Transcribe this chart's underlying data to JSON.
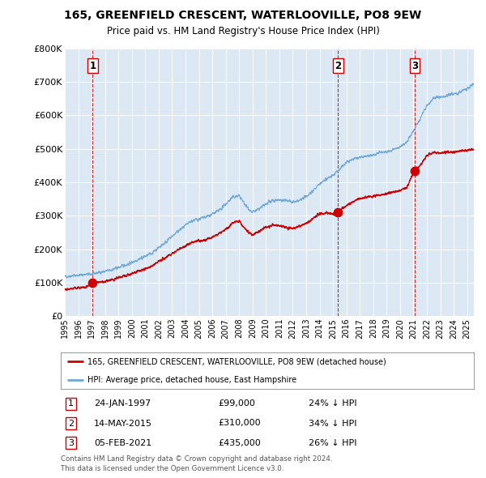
{
  "title_line1": "165, GREENFIELD CRESCENT, WATERLOOVILLE, PO8 9EW",
  "title_line2": "Price paid vs. HM Land Registry's House Price Index (HPI)",
  "background_color": "#dce9f5",
  "plot_bg_color": "#dce9f5",
  "outer_bg_color": "#ffffff",
  "red_line_color": "#cc0000",
  "blue_line_color": "#6fa8d6",
  "sale_points": [
    {
      "year": 1997.07,
      "price": 99000,
      "label": "1"
    },
    {
      "year": 2015.37,
      "price": 310000,
      "label": "2"
    },
    {
      "year": 2021.09,
      "price": 435000,
      "label": "3"
    }
  ],
  "vertical_line_years": [
    1997.07,
    2015.37,
    2021.09
  ],
  "xmin": 1995,
  "xmax": 2025.5,
  "ymin": 0,
  "ymax": 800000,
  "yticks": [
    0,
    100000,
    200000,
    300000,
    400000,
    500000,
    600000,
    700000,
    800000
  ],
  "ytick_labels": [
    "£0",
    "£100K",
    "£200K",
    "£300K",
    "£400K",
    "£500K",
    "£600K",
    "£700K",
    "£800K"
  ],
  "legend_line1": "165, GREENFIELD CRESCENT, WATERLOOVILLE, PO8 9EW (detached house)",
  "legend_line2": "HPI: Average price, detached house, East Hampshire",
  "table_rows": [
    {
      "num": "1",
      "date": "24-JAN-1997",
      "price": "£99,000",
      "hpi": "24% ↓ HPI"
    },
    {
      "num": "2",
      "date": "14-MAY-2015",
      "price": "£310,000",
      "hpi": "34% ↓ HPI"
    },
    {
      "num": "3",
      "date": "05-FEB-2021",
      "price": "£435,000",
      "hpi": "26% ↓ HPI"
    }
  ],
  "footer": "Contains HM Land Registry data © Crown copyright and database right 2024.\nThis data is licensed under the Open Government Licence v3.0.",
  "hpi_anchors": [
    [
      1995.0,
      118000
    ],
    [
      1995.5,
      120000
    ],
    [
      1996.0,
      122000
    ],
    [
      1996.5,
      124000
    ],
    [
      1997.0,
      125000
    ],
    [
      1997.5,
      130000
    ],
    [
      1998.0,
      133000
    ],
    [
      1998.5,
      138000
    ],
    [
      1999.0,
      145000
    ],
    [
      1999.5,
      152000
    ],
    [
      2000.0,
      160000
    ],
    [
      2000.5,
      170000
    ],
    [
      2001.0,
      178000
    ],
    [
      2001.5,
      188000
    ],
    [
      2002.0,
      205000
    ],
    [
      2002.5,
      220000
    ],
    [
      2003.0,
      238000
    ],
    [
      2003.5,
      255000
    ],
    [
      2004.0,
      270000
    ],
    [
      2004.5,
      285000
    ],
    [
      2005.0,
      290000
    ],
    [
      2005.5,
      295000
    ],
    [
      2006.0,
      305000
    ],
    [
      2006.5,
      315000
    ],
    [
      2007.0,
      335000
    ],
    [
      2007.5,
      355000
    ],
    [
      2008.0,
      360000
    ],
    [
      2008.5,
      330000
    ],
    [
      2009.0,
      310000
    ],
    [
      2009.5,
      320000
    ],
    [
      2010.0,
      335000
    ],
    [
      2010.5,
      345000
    ],
    [
      2011.0,
      348000
    ],
    [
      2011.5,
      345000
    ],
    [
      2012.0,
      340000
    ],
    [
      2012.5,
      345000
    ],
    [
      2013.0,
      358000
    ],
    [
      2013.5,
      375000
    ],
    [
      2014.0,
      395000
    ],
    [
      2014.5,
      410000
    ],
    [
      2015.0,
      420000
    ],
    [
      2015.5,
      440000
    ],
    [
      2016.0,
      460000
    ],
    [
      2016.5,
      470000
    ],
    [
      2017.0,
      475000
    ],
    [
      2017.5,
      478000
    ],
    [
      2018.0,
      482000
    ],
    [
      2018.5,
      488000
    ],
    [
      2019.0,
      492000
    ],
    [
      2019.5,
      498000
    ],
    [
      2020.0,
      505000
    ],
    [
      2020.5,
      520000
    ],
    [
      2021.0,
      555000
    ],
    [
      2021.5,
      590000
    ],
    [
      2022.0,
      630000
    ],
    [
      2022.5,
      650000
    ],
    [
      2023.0,
      655000
    ],
    [
      2023.5,
      660000
    ],
    [
      2024.0,
      665000
    ],
    [
      2024.5,
      670000
    ],
    [
      2025.0,
      680000
    ],
    [
      2025.5,
      695000
    ]
  ],
  "red_anchors": [
    [
      1995.0,
      80000
    ],
    [
      1995.5,
      82000
    ],
    [
      1996.0,
      84000
    ],
    [
      1996.5,
      87000
    ],
    [
      1997.07,
      99000
    ],
    [
      1997.5,
      100000
    ],
    [
      1998.0,
      103000
    ],
    [
      1998.5,
      108000
    ],
    [
      1999.0,
      114000
    ],
    [
      1999.5,
      120000
    ],
    [
      2000.0,
      127000
    ],
    [
      2000.5,
      134000
    ],
    [
      2001.0,
      140000
    ],
    [
      2001.5,
      150000
    ],
    [
      2002.0,
      162000
    ],
    [
      2002.5,
      175000
    ],
    [
      2003.0,
      188000
    ],
    [
      2003.5,
      200000
    ],
    [
      2004.0,
      210000
    ],
    [
      2004.5,
      220000
    ],
    [
      2005.0,
      225000
    ],
    [
      2005.5,
      228000
    ],
    [
      2006.0,
      236000
    ],
    [
      2006.5,
      246000
    ],
    [
      2007.0,
      260000
    ],
    [
      2007.5,
      278000
    ],
    [
      2008.0,
      285000
    ],
    [
      2008.5,
      258000
    ],
    [
      2009.0,
      242000
    ],
    [
      2009.5,
      255000
    ],
    [
      2010.0,
      265000
    ],
    [
      2010.5,
      272000
    ],
    [
      2011.0,
      270000
    ],
    [
      2011.5,
      265000
    ],
    [
      2012.0,
      262000
    ],
    [
      2012.5,
      268000
    ],
    [
      2013.0,
      278000
    ],
    [
      2013.5,
      292000
    ],
    [
      2014.0,
      306000
    ],
    [
      2014.5,
      308000
    ],
    [
      2015.0,
      305000
    ],
    [
      2015.37,
      310000
    ],
    [
      2015.5,
      315000
    ],
    [
      2016.0,
      330000
    ],
    [
      2016.5,
      342000
    ],
    [
      2017.0,
      352000
    ],
    [
      2017.5,
      355000
    ],
    [
      2018.0,
      358000
    ],
    [
      2018.5,
      362000
    ],
    [
      2019.0,
      367000
    ],
    [
      2019.5,
      372000
    ],
    [
      2020.0,
      375000
    ],
    [
      2020.5,
      385000
    ],
    [
      2021.09,
      435000
    ],
    [
      2021.5,
      450000
    ],
    [
      2022.0,
      480000
    ],
    [
      2022.5,
      490000
    ],
    [
      2023.0,
      488000
    ],
    [
      2023.5,
      490000
    ],
    [
      2024.0,
      492000
    ],
    [
      2024.5,
      495000
    ],
    [
      2025.0,
      495000
    ],
    [
      2025.5,
      498000
    ]
  ]
}
